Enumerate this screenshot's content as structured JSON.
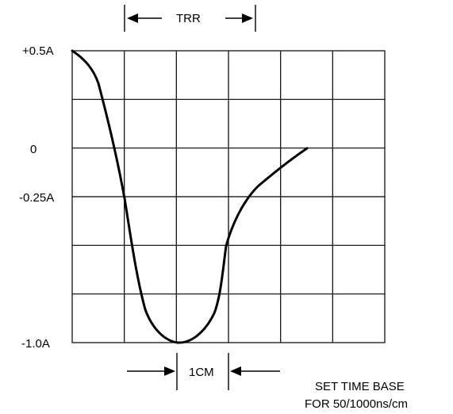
{
  "diagram": {
    "trr_label": "TRR",
    "cm_label": "1CM",
    "note_line1": "SET TIME BASE",
    "note_line2": "FOR 50/1000ns/cm",
    "y_labels": {
      "top": "+0.5A",
      "zero": "0",
      "minus_quarter": "-0.25A",
      "bottom": "-1.0A"
    },
    "grid": {
      "columns": 6,
      "rows": 6
    },
    "waveform": {
      "description_points_cm": [
        [
          0.0,
          0.0
        ],
        [
          0.25,
          0.25
        ],
        [
          0.5,
          0.65
        ],
        [
          0.9,
          2.0
        ],
        [
          1.1,
          3.0
        ],
        [
          1.3,
          4.3
        ],
        [
          1.55,
          5.2
        ],
        [
          1.8,
          5.7
        ],
        [
          2.1,
          5.95
        ],
        [
          2.3,
          5.98
        ],
        [
          2.6,
          5.75
        ],
        [
          2.8,
          5.2
        ],
        [
          2.95,
          4.0
        ],
        [
          3.2,
          3.3
        ],
        [
          3.6,
          2.8
        ],
        [
          4.1,
          2.35
        ],
        [
          4.5,
          2.0
        ]
      ]
    }
  }
}
